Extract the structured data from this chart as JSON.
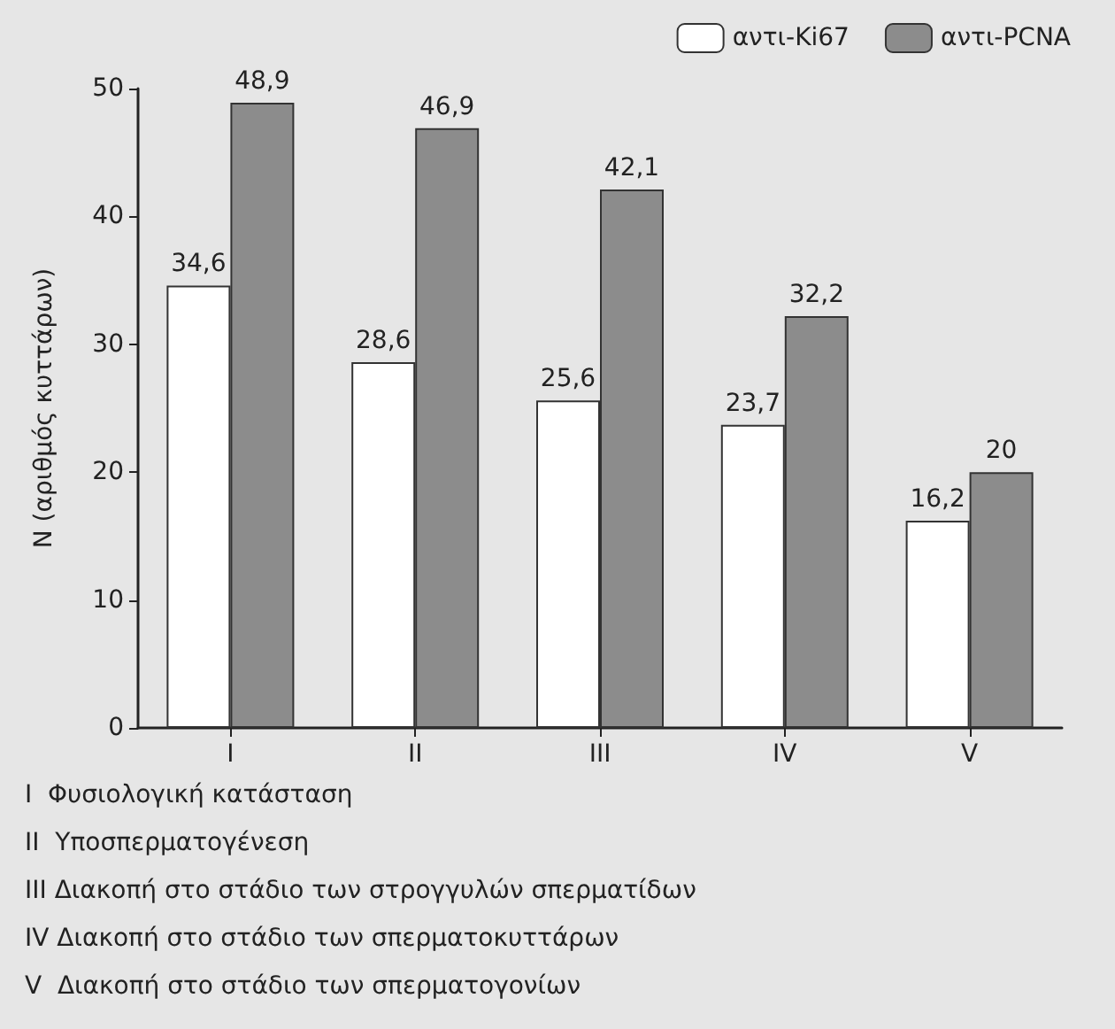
{
  "chart_data": {
    "type": "bar",
    "ylabel": "N (αριθμός κυττάρων)",
    "categories": [
      "I",
      "II",
      "III",
      "IV",
      "V"
    ],
    "series": [
      {
        "name": "αντι-Ki67",
        "color": "#ffffff",
        "values": [
          34.6,
          28.6,
          25.6,
          23.7,
          16.2
        ],
        "value_labels": [
          "34,6",
          "28,6",
          "25,6",
          "23,7",
          "16,2"
        ]
      },
      {
        "name": "αντι-PCNA",
        "color": "#8c8c8c",
        "values": [
          48.9,
          46.9,
          42.1,
          32.2,
          20
        ],
        "value_labels": [
          "48,9",
          "46,9",
          "42,1",
          "32,2",
          "20"
        ]
      }
    ],
    "ylim": [
      0,
      50
    ],
    "yticks": [
      0,
      10,
      20,
      30,
      40,
      50
    ],
    "grid": false,
    "legend": "top right",
    "annotations": [
      "I  Φυσιολογική κατάσταση",
      "II  Υποσπερματογένεση",
      "III Διακοπή στο στάδιο των στρογγυλών σπερματίδων",
      "IV Διακοπή στο στάδιο των σπερματοκυττάρων",
      "V  Διακοπή στο στάδιο των σπερματογονίων"
    ]
  }
}
